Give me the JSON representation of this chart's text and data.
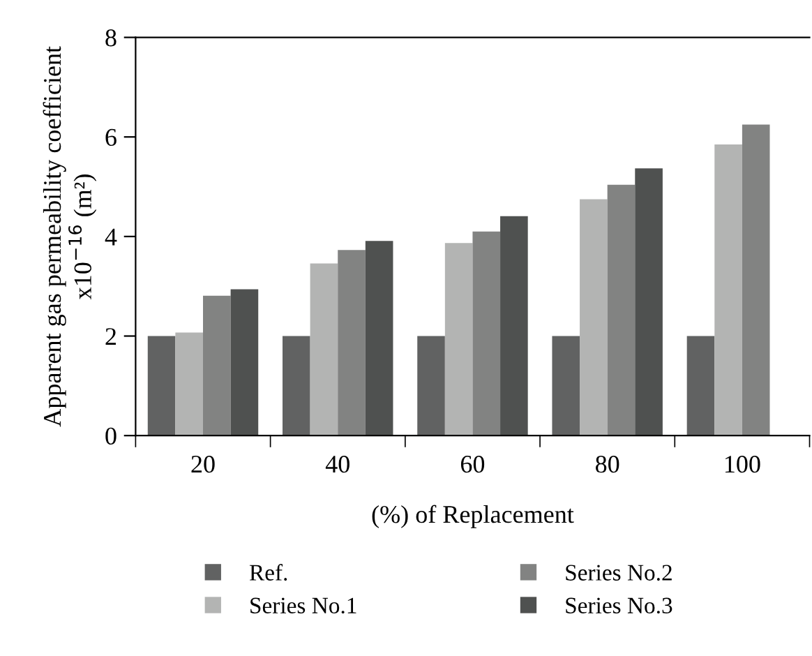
{
  "chart_data": {
    "type": "bar",
    "xlabel": "(%) of Replacement",
    "ylabel": "Apparent gas permeability coefficient\nx10$^{−16}$ (m²)",
    "categories": [
      "20",
      "40",
      "60",
      "80",
      "100"
    ],
    "series": [
      {
        "name": "Ref.",
        "color": "#616262",
        "values": [
          2.0,
          2.0,
          2.0,
          2.0,
          2.0
        ]
      },
      {
        "name": "Series No.1",
        "color": "#b3b4b3",
        "values": [
          2.07,
          3.46,
          3.87,
          4.75,
          5.85
        ]
      },
      {
        "name": "Series No.2",
        "color": "#828382",
        "values": [
          2.81,
          3.73,
          4.1,
          5.04,
          6.25
        ]
      },
      {
        "name": "Series No.3",
        "color": "#4f5150",
        "values": [
          2.94,
          3.91,
          4.41,
          5.37,
          null
        ]
      }
    ],
    "ylim": [
      0,
      8
    ],
    "yticks": [
      0,
      2,
      4,
      6,
      8
    ],
    "grid": false,
    "legend": "bottom"
  }
}
